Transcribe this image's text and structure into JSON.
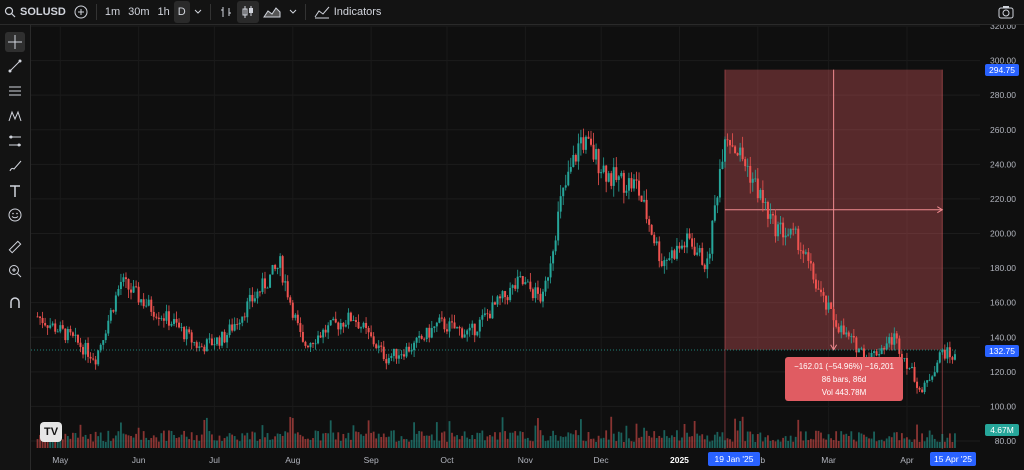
{
  "toolbar": {
    "symbol": "SOLUSD",
    "intervals": [
      "1m",
      "30m",
      "1h",
      "D"
    ],
    "active_interval": "D",
    "indicators_label": "Indicators"
  },
  "price_axis": {
    "labels": [
      "320.00",
      "300.00",
      "280.00",
      "260.00",
      "240.00",
      "220.00",
      "200.00",
      "180.00",
      "160.00",
      "140.00",
      "120.00",
      "100.00",
      "80.00"
    ],
    "range": [
      80,
      320
    ],
    "top_badge": "294.75",
    "current_badge": "132.75",
    "volume_badge": "4.67M"
  },
  "time_axis": {
    "labels": [
      "May",
      "Jun",
      "Jul",
      "Aug",
      "Sep",
      "Oct",
      "Nov",
      "Dec",
      "2025",
      "Feb",
      "Mar",
      "Apr"
    ],
    "start_badge": "19 Jan '25",
    "end_badge": "15 Apr '25"
  },
  "measurement": {
    "line1": "−162.01 (−54.96%) −16,201",
    "line2": "86 bars, 86d",
    "line3": "Vol 443.78M",
    "from_price": 294.75,
    "to_price": 132.75
  },
  "chart_data": {
    "type": "candlestick",
    "x_range": [
      "2024-04-21",
      "2025-04-22"
    ],
    "y_range": [
      80,
      320
    ],
    "close_path": [
      [
        "2024-04-22",
        152
      ],
      [
        "2024-05-05",
        140
      ],
      [
        "2024-05-15",
        128
      ],
      [
        "2024-05-25",
        172
      ],
      [
        "2024-06-05",
        158
      ],
      [
        "2024-06-15",
        148
      ],
      [
        "2024-06-25",
        134
      ],
      [
        "2024-07-05",
        140
      ],
      [
        "2024-07-15",
        160
      ],
      [
        "2024-07-27",
        182
      ],
      [
        "2024-08-05",
        135
      ],
      [
        "2024-08-15",
        145
      ],
      [
        "2024-08-25",
        152
      ],
      [
        "2024-09-07",
        128
      ],
      [
        "2024-09-18",
        135
      ],
      [
        "2024-09-28",
        148
      ],
      [
        "2024-10-10",
        142
      ],
      [
        "2024-10-20",
        158
      ],
      [
        "2024-10-30",
        172
      ],
      [
        "2024-11-08",
        162
      ],
      [
        "2024-11-15",
        218
      ],
      [
        "2024-11-23",
        255
      ],
      [
        "2024-12-05",
        232
      ],
      [
        "2024-12-15",
        228
      ],
      [
        "2024-12-25",
        184
      ],
      [
        "2025-01-05",
        196
      ],
      [
        "2025-01-12",
        181
      ],
      [
        "2025-01-19",
        260
      ],
      [
        "2025-01-28",
        238
      ],
      [
        "2025-02-07",
        205
      ],
      [
        "2025-02-17",
        196
      ],
      [
        "2025-02-27",
        160
      ],
      [
        "2025-03-07",
        142
      ],
      [
        "2025-03-17",
        128
      ],
      [
        "2025-03-27",
        140
      ],
      [
        "2025-04-07",
        108
      ],
      [
        "2025-04-15",
        132
      ],
      [
        "2025-04-20",
        128
      ]
    ]
  },
  "colors": {
    "up": "#26a69a",
    "down": "#ef5350",
    "measure_fill": "#e05c62",
    "badge_blue": "#2962ff"
  }
}
